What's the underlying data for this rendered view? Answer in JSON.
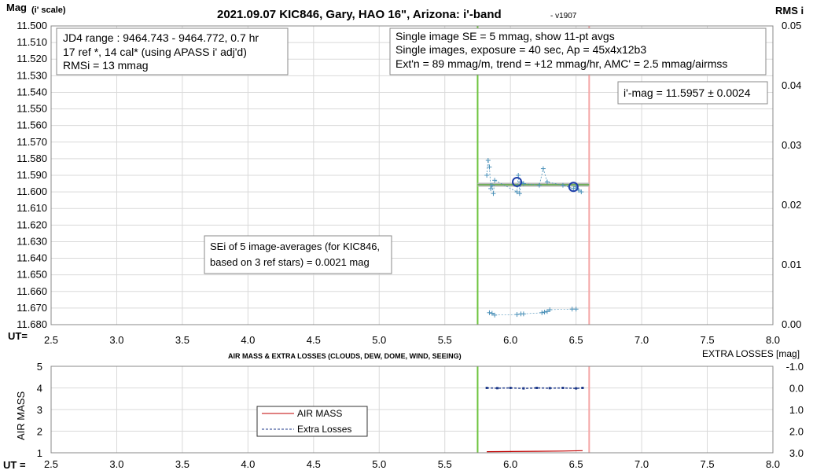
{
  "chart_title": "2021.09.07 KIC846, Gary, HAO 16\", Arizona: i'-band",
  "chart_version": "- v1907",
  "colors": {
    "vline_start": "#6ec43f",
    "vline_end": "#f4a6a6",
    "series_points": "#4a90b8",
    "series_avg": "#1f3faa",
    "fit_gray": "#b8b8b8",
    "fit_green": "#5aaa3c",
    "air_mass": "#c00000",
    "extra_losses": "#1f3a8a",
    "grid": "#d9d9d9"
  },
  "chart_data": [
    {
      "type": "scatter",
      "title": "2021.09.07 KIC846, Gary, HAO 16\", Arizona: i'-band",
      "ylabel_main": "Mag",
      "ylabel_note": "(i' scale)",
      "y2label": "RMS i",
      "xlabel": "UT=",
      "xlim": [
        2.5,
        8.0
      ],
      "ylim": [
        11.5,
        11.68
      ],
      "y2lim": [
        0.0,
        0.05
      ],
      "x_ticks": [
        "2.5",
        "3.0",
        "3.5",
        "4.0",
        "4.5",
        "5.0",
        "5.5",
        "6.0",
        "6.5",
        "7.0",
        "7.5",
        "8.0"
      ],
      "y_ticks": [
        "11.500",
        "11.510",
        "11.520",
        "11.530",
        "11.540",
        "11.550",
        "11.560",
        "11.570",
        "11.580",
        "11.590",
        "11.600",
        "11.610",
        "11.620",
        "11.630",
        "11.640",
        "11.650",
        "11.660",
        "11.670",
        "11.680"
      ],
      "y2_ticks": [
        "0.05",
        "0.04",
        "0.03",
        "0.02",
        "0.01",
        "0.00"
      ],
      "vertical_lines": {
        "start": 5.75,
        "end": 6.6
      },
      "grid": true,
      "series": [
        {
          "kind": "single_images",
          "x": [
            5.82,
            5.83,
            5.84,
            5.85,
            5.86,
            5.87,
            5.88,
            6.05,
            6.06,
            6.07,
            6.08,
            6.1,
            6.22,
            6.25,
            6.28,
            6.4,
            6.48,
            6.5,
            6.52,
            6.54
          ],
          "y": [
            11.59,
            11.581,
            11.585,
            11.598,
            11.596,
            11.601,
            11.593,
            11.6,
            11.59,
            11.601,
            11.594,
            11.595,
            11.596,
            11.586,
            11.594,
            11.596,
            11.598,
            11.597,
            11.599,
            11.6
          ]
        },
        {
          "kind": "averages",
          "x": [
            6.05,
            6.48
          ],
          "y": [
            11.594,
            11.597
          ]
        },
        {
          "kind": "rms",
          "x": [
            5.84,
            5.86,
            5.88,
            6.05,
            6.08,
            6.1,
            6.24,
            6.26,
            6.28,
            6.3,
            6.47,
            6.5
          ],
          "y": [
            0.002,
            0.0019,
            0.0016,
            0.0017,
            0.0018,
            0.0018,
            0.002,
            0.0021,
            0.0022,
            0.0025,
            0.0026,
            0.0026
          ]
        }
      ],
      "fit_line": {
        "x": [
          5.75,
          6.6
        ],
        "y": 11.5957
      },
      "annotations": {
        "box1": [
          "JD4 range : 9464.743 - 9464.772, 0.7  hr",
          "17 ref *, 14 cal* (using APASS i' adj'd)",
          "RMSi = 13 mmag"
        ],
        "box2": [
          "Single image SE = 5 mmag, show 11-pt avgs",
          "Single images, exposure = 40 sec, Ap = 45x4x12b3",
          "Ext'n = 89 mmag/m, trend = +12 mmag/hr, AMC' = 2.5 mmag/airmss"
        ],
        "box3": "i'-mag = 11.5957 ± 0.0024",
        "box4": [
          "SEi of 5 image-averages (for KIC846,",
          "based on 3 ref stars) = 0.0021 mag"
        ]
      }
    },
    {
      "type": "line",
      "title": "AIR MASS & EXTRA LOSSES (CLOUDS, DEW, DOME, WIND, SEEING)",
      "ylabel": "AIR MASS",
      "y2label": "EXTRA LOSSES [mag]",
      "xlabel": "UT =",
      "xlim": [
        2.5,
        8.0
      ],
      "ylim": [
        1,
        5
      ],
      "y2lim": [
        -1.0,
        3.0
      ],
      "x_ticks": [
        "2.5",
        "3.0",
        "3.5",
        "4.0",
        "4.5",
        "5.0",
        "5.5",
        "6.0",
        "6.5",
        "7.0",
        "7.5",
        "8.0"
      ],
      "y_ticks": [
        "5",
        "4",
        "3",
        "2",
        "1"
      ],
      "y2_ticks": [
        "-1.0",
        "0.0",
        "1.0",
        "2.0",
        "3.0"
      ],
      "vertical_lines": {
        "start": 5.75,
        "end": 6.6
      },
      "legend": [
        "AIR MASS",
        "Extra Losses"
      ],
      "legend_position": "left-center",
      "series": [
        {
          "name": "AIR MASS",
          "x": [
            5.82,
            6.0,
            6.2,
            6.4,
            6.55
          ],
          "y": [
            1.05,
            1.06,
            1.07,
            1.08,
            1.1
          ]
        },
        {
          "name": "Extra Losses",
          "x": [
            5.82,
            5.9,
            6.0,
            6.1,
            6.2,
            6.3,
            6.4,
            6.5,
            6.55
          ],
          "y": [
            0.0,
            0.01,
            0.0,
            0.02,
            0.0,
            0.01,
            0.0,
            0.02,
            0.0
          ]
        }
      ]
    }
  ]
}
